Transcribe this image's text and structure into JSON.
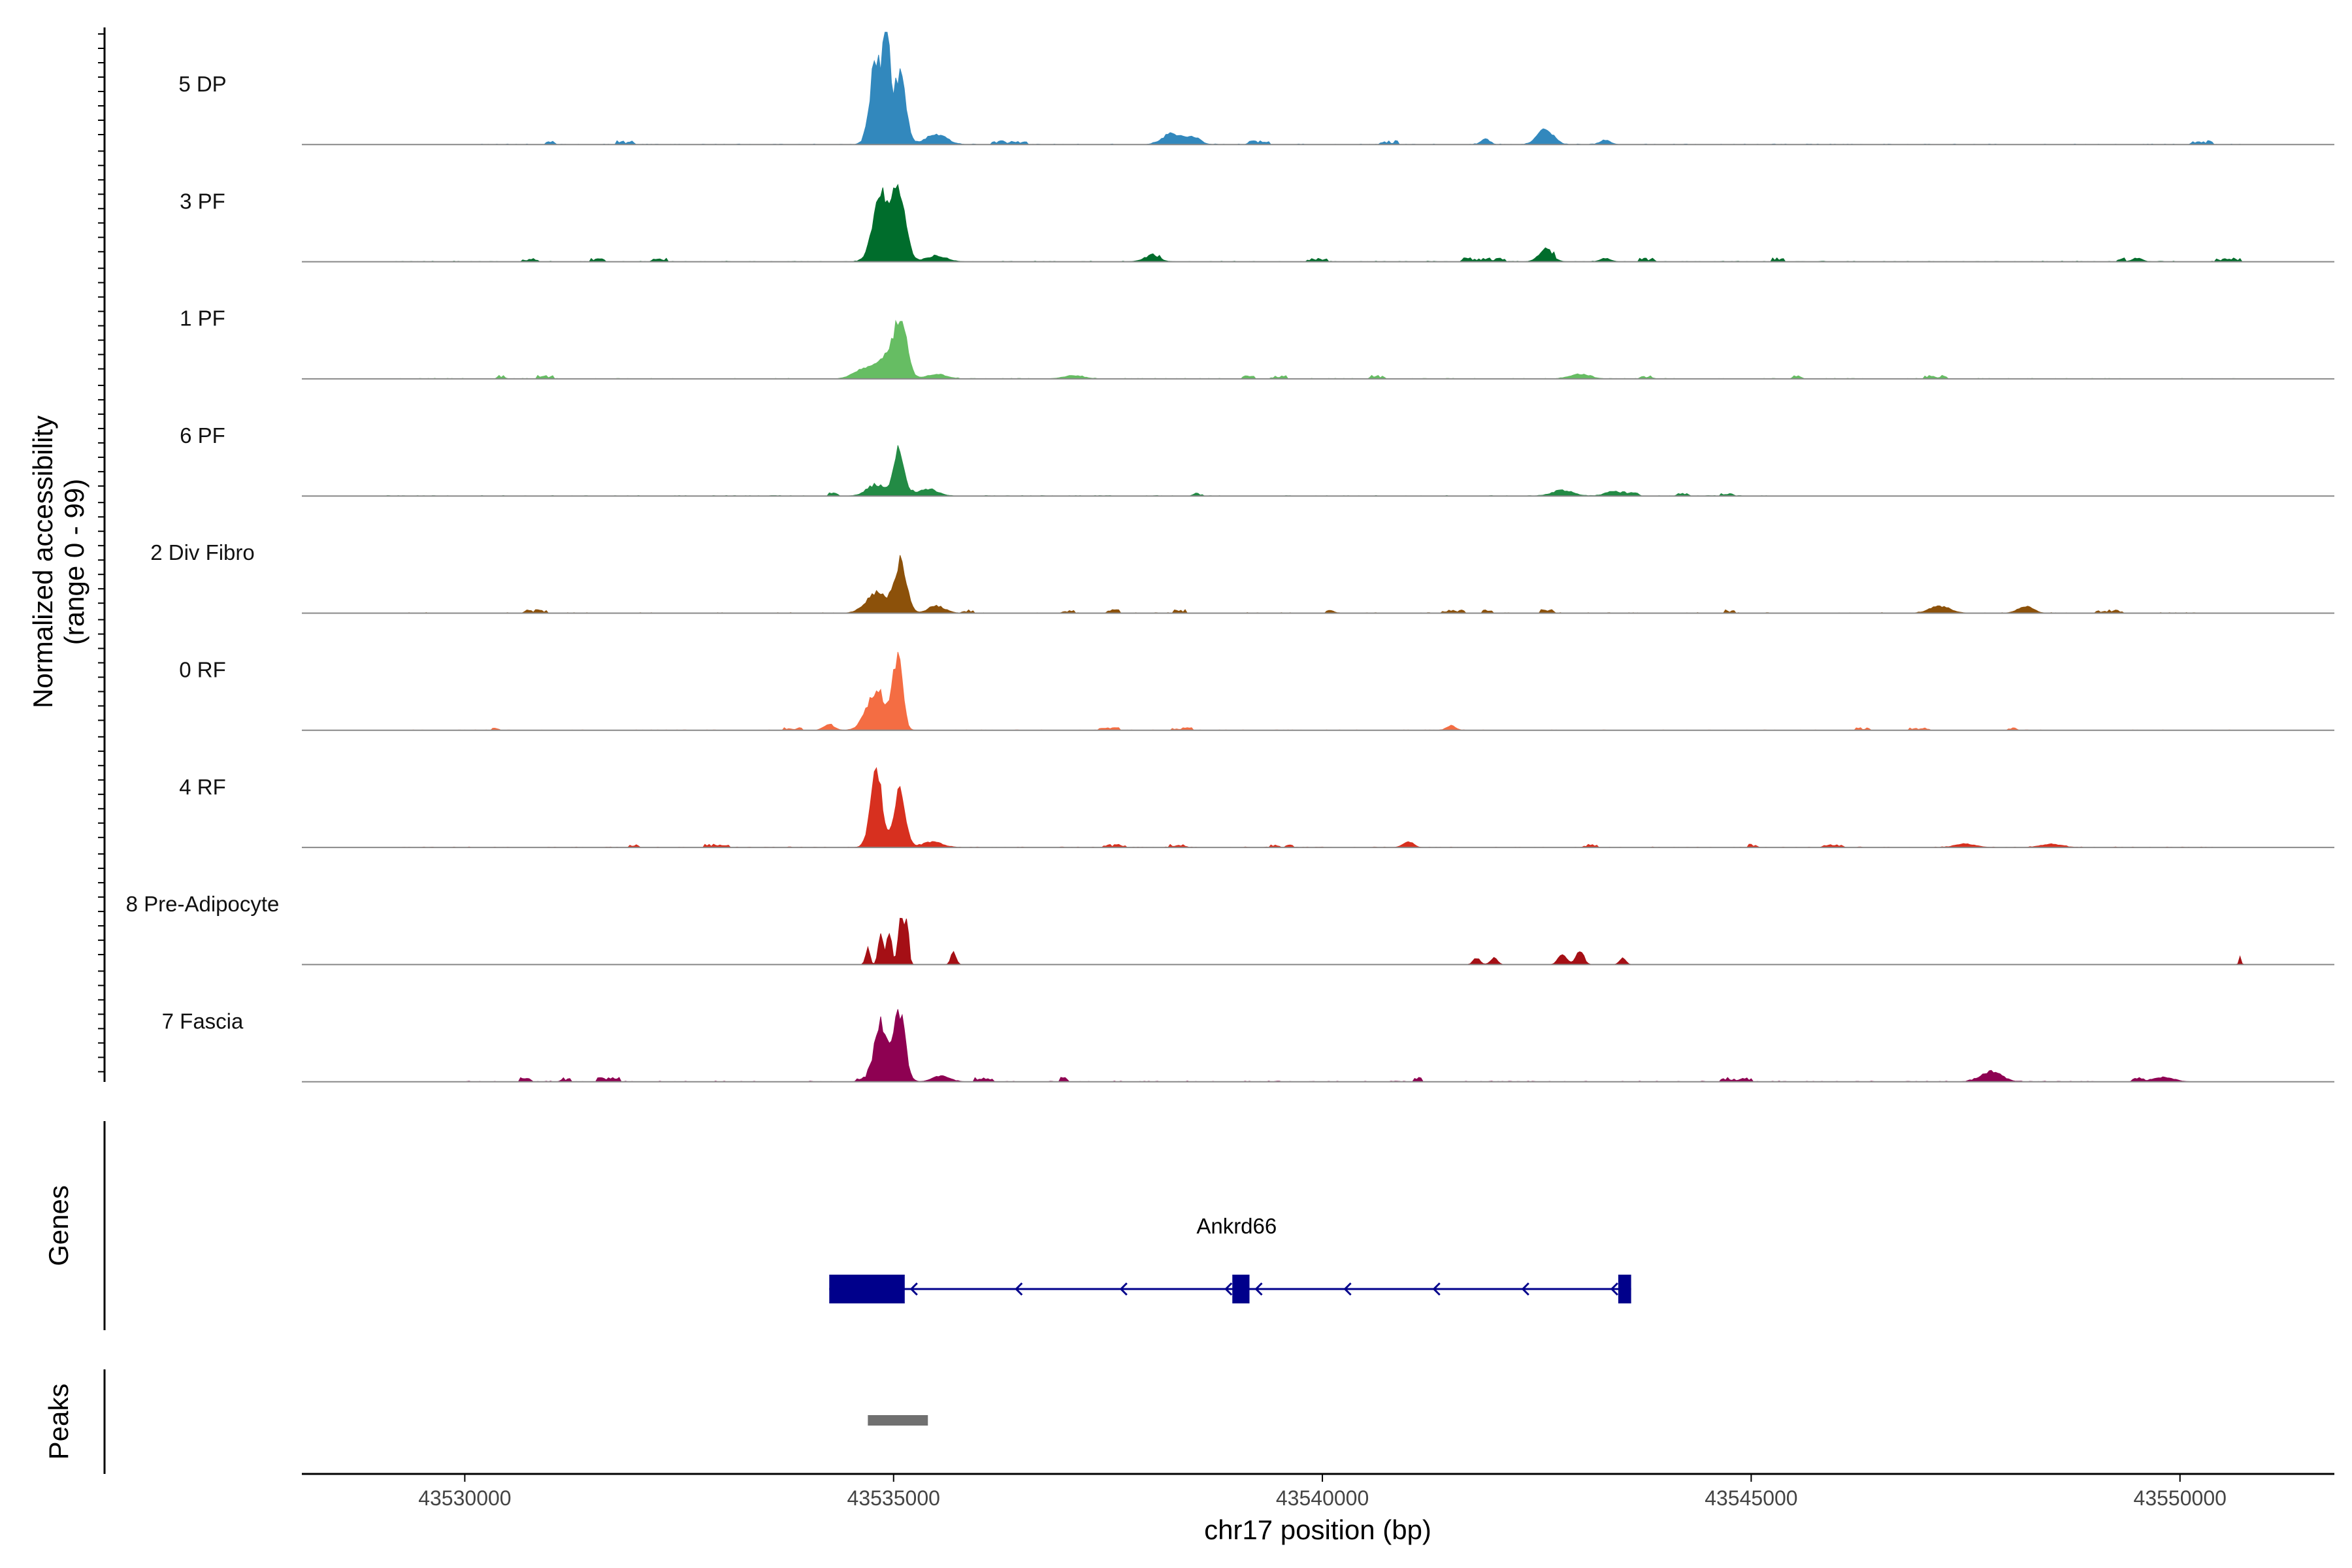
{
  "chart_data": {
    "type": "area",
    "ylabel_line1": "Normalized accessibility",
    "ylabel_line2": "(range 0 - 99)",
    "xlabel": "chr17 position (bp)",
    "xlim": [
      43528100,
      43551800
    ],
    "ylim": [
      0,
      99
    ],
    "xticks": [
      {
        "value": 43530000,
        "label": "43530000"
      },
      {
        "value": 43535000,
        "label": "43535000"
      },
      {
        "value": 43540000,
        "label": "43540000"
      },
      {
        "value": 43545000,
        "label": "43545000"
      },
      {
        "value": 43550000,
        "label": "43550000"
      }
    ],
    "tracks": [
      {
        "name": "5 DP",
        "color": "#3288bd",
        "noise": 2.2,
        "noise_start": 43530200,
        "noise_end": 43550700,
        "peaks": [
          [
            43534800,
            78,
            70
          ],
          [
            43534920,
            99,
            35
          ],
          [
            43535070,
            62,
            70
          ],
          [
            43535500,
            9,
            120
          ],
          [
            43538250,
            10,
            110
          ],
          [
            43538500,
            6,
            80
          ],
          [
            43541900,
            5,
            50
          ],
          [
            43542600,
            14,
            90
          ],
          [
            43543300,
            4,
            60
          ]
        ]
      },
      {
        "name": "3 PF",
        "color": "#006d2c",
        "noise": 2.2,
        "noise_start": 43529100,
        "noise_end": 43550700,
        "peaks": [
          [
            43534850,
            58,
            90
          ],
          [
            43535060,
            62,
            80
          ],
          [
            43535500,
            5,
            120
          ],
          [
            43538000,
            4,
            100
          ],
          [
            43542600,
            10,
            80
          ],
          [
            43543300,
            3,
            60
          ],
          [
            43549500,
            3,
            60
          ]
        ]
      },
      {
        "name": "1 PF",
        "color": "#66bd63",
        "noise": 2.0,
        "noise_start": 43529200,
        "noise_end": 43550700,
        "peaks": [
          [
            43534650,
            8,
            120
          ],
          [
            43534900,
            18,
            100
          ],
          [
            43535080,
            49,
            75
          ],
          [
            43535500,
            4,
            120
          ],
          [
            43537100,
            3,
            120
          ],
          [
            43543000,
            4,
            120
          ]
        ]
      },
      {
        "name": "6 PF",
        "color": "#238b45",
        "noise": 1.8,
        "noise_start": 43529100,
        "noise_end": 43545200,
        "peaks": [
          [
            43534800,
            10,
            110
          ],
          [
            43535060,
            42,
            55
          ],
          [
            43535400,
            6,
            110
          ],
          [
            43542800,
            5,
            120
          ],
          [
            43543400,
            4,
            100
          ]
        ]
      },
      {
        "name": "2 Div Fibro",
        "color": "#8c510a",
        "noise": 2.0,
        "noise_start": 43529000,
        "noise_end": 43550300,
        "peaks": [
          [
            43534800,
            18,
            120
          ],
          [
            43535080,
            44,
            70
          ],
          [
            43535500,
            6,
            100
          ],
          [
            43547200,
            6,
            120
          ],
          [
            43548200,
            6,
            90
          ]
        ]
      },
      {
        "name": "0 RF",
        "color": "#f46d43",
        "noise": 1.5,
        "noise_start": 43529000,
        "noise_end": 43550700,
        "peaks": [
          [
            43534250,
            5,
            60
          ],
          [
            43534800,
            35,
            110
          ],
          [
            43535050,
            64,
            55
          ],
          [
            43541500,
            4,
            50
          ]
        ]
      },
      {
        "name": "4 RF",
        "color": "#d7301f",
        "noise": 1.8,
        "noise_start": 43529100,
        "noise_end": 43550400,
        "peaks": [
          [
            43534800,
            62,
            70
          ],
          [
            43535070,
            50,
            65
          ],
          [
            43535450,
            5,
            110
          ],
          [
            43541000,
            5,
            60
          ],
          [
            43547500,
            3,
            120
          ],
          [
            43548500,
            3,
            120
          ]
        ]
      },
      {
        "name": "8 Pre-Adipocyte",
        "color": "#a50f15",
        "noise": 0,
        "noise_start": 43534700,
        "noise_end": 43535400,
        "peaks": [
          [
            43534700,
            14,
            25
          ],
          [
            43534850,
            28,
            28
          ],
          [
            43534950,
            30,
            28
          ],
          [
            43535080,
            45,
            28
          ],
          [
            43535150,
            40,
            25
          ],
          [
            43535700,
            11,
            30
          ],
          [
            43541800,
            6,
            40
          ],
          [
            43542000,
            6,
            40
          ],
          [
            43542800,
            9,
            50
          ],
          [
            43543000,
            13,
            45
          ],
          [
            43543500,
            6,
            35
          ],
          [
            43550700,
            8,
            12
          ]
        ]
      },
      {
        "name": "7 Fascia",
        "color": "#8e0152",
        "noise": 2.4,
        "noise_start": 43530000,
        "noise_end": 43550400,
        "peaks": [
          [
            43534850,
            48,
            75
          ],
          [
            43535070,
            58,
            65
          ],
          [
            43535550,
            5,
            100
          ],
          [
            43547800,
            9,
            120
          ],
          [
            43549800,
            4,
            120
          ]
        ]
      }
    ],
    "genes_label": "Genes",
    "peaks_label": "Peaks",
    "gene": {
      "name": "Ankrd66",
      "strand": "-",
      "color": "#00008b",
      "start": 43534250,
      "end": 43543600,
      "exons": [
        [
          43534250,
          43535130
        ],
        [
          43538950,
          43539150
        ],
        [
          43543450,
          43543600
        ]
      ]
    },
    "peak_regions": [
      {
        "start": 43534700,
        "end": 43535400,
        "color": "#707070"
      }
    ]
  }
}
